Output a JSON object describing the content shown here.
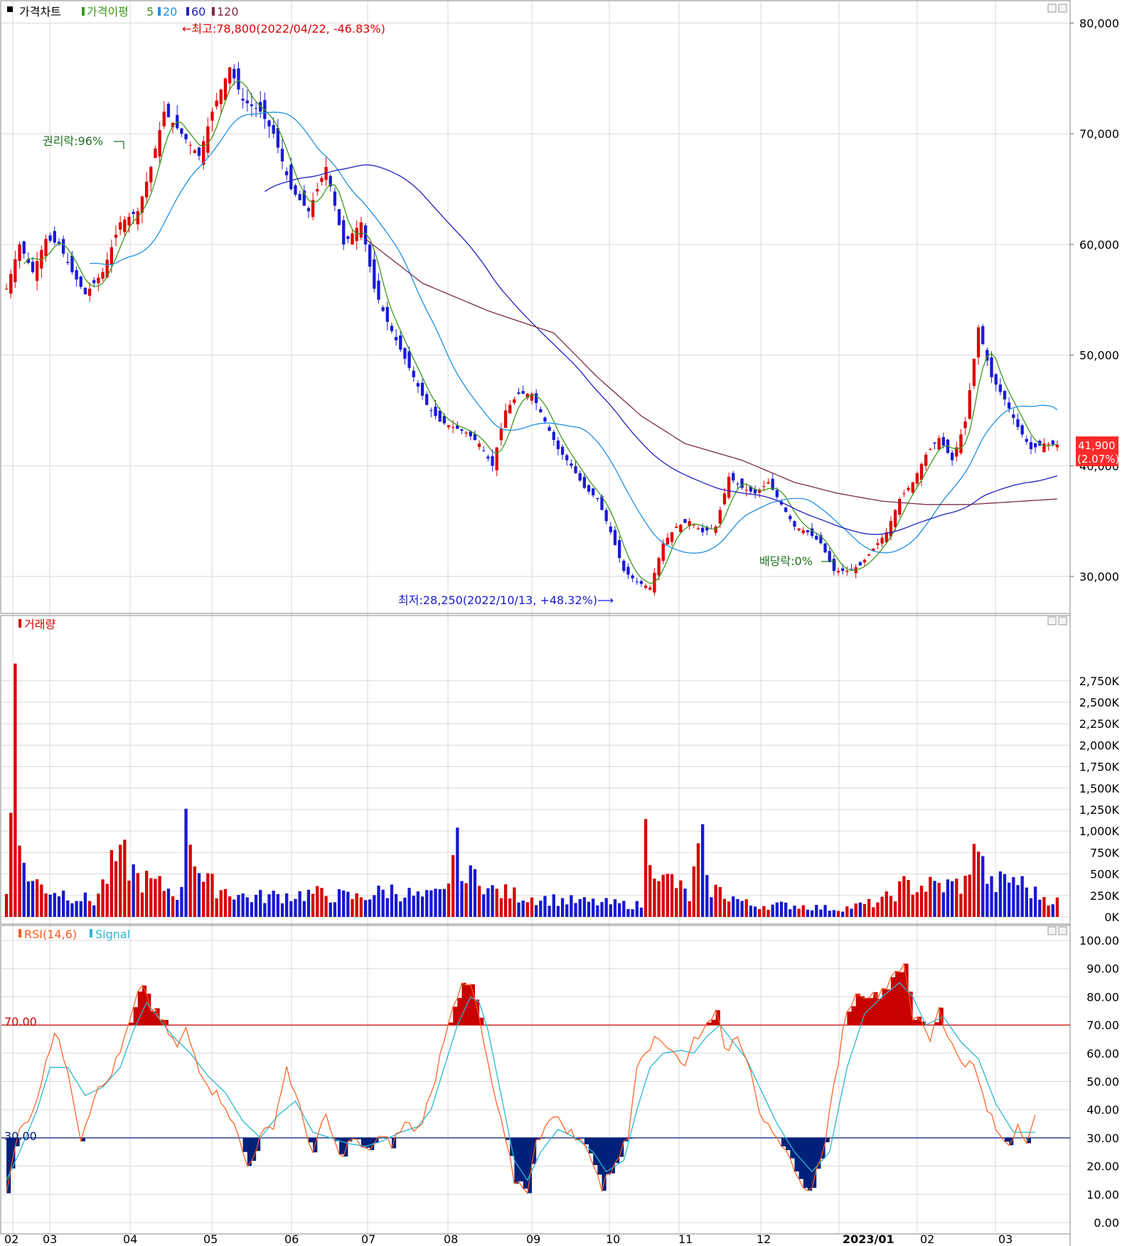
{
  "colors": {
    "up": "#e00000",
    "down": "#1a1ad6",
    "ma5": "#3a9a1a",
    "ma20": "#2090e0",
    "ma60": "#2020c0",
    "ma120": "#7a2a4a",
    "vol_up": "#d80000",
    "vol_down": "#1818d0",
    "rsi": "#ff5a1a",
    "signal": "#2ab8d0",
    "over": "#c80000",
    "under": "#00207a",
    "grid": "#d8d8d8",
    "pricebox": "#ff2a2a"
  },
  "price_panel": {
    "legend": {
      "title": "가격차트",
      "ma_label": "가격이평",
      "p5": "5",
      "p20": "20",
      "p60": "60",
      "p120": "120"
    },
    "annotations": {
      "high": "←최고:78,800(2022/04/22, -46.83%)",
      "low": "최저:28,250(2022/10/13, +48.32%)⟶",
      "rights": "권리락:96%",
      "dividend": "배당락:0%"
    },
    "last_price": "41,900",
    "last_change": "(2.07%)"
  },
  "volume_panel": {
    "legend": "거래량"
  },
  "rsi_panel": {
    "legend_rsi": "RSI(14,6)",
    "legend_signal": "Signal",
    "upper_label": "70.00",
    "lower_label": "30.00"
  },
  "chart_data": [
    {
      "type": "candlestick",
      "title": "가격차트",
      "y_ticks": [
        "30,000",
        "40,000",
        "50,000",
        "60,000",
        "70,000",
        "80,000"
      ],
      "ylim": [
        27000,
        82000
      ],
      "x_ticks": [
        "02",
        "03",
        "04",
        "05",
        "06",
        "07",
        "08",
        "09",
        "10",
        "11",
        "12",
        "2023/01",
        "02",
        "03"
      ],
      "high": {
        "value": 78800,
        "date": "2022/04/22",
        "pct": -46.83
      },
      "low": {
        "value": 28250,
        "date": "2022/10/13",
        "pct": 48.32
      },
      "last": 41900,
      "close_anchors": [
        [
          0,
          56000
        ],
        [
          3,
          60000
        ],
        [
          6,
          57500
        ],
        [
          9,
          60500
        ],
        [
          12,
          60000
        ],
        [
          15,
          57500
        ],
        [
          18,
          55500
        ],
        [
          22,
          57500
        ],
        [
          26,
          62000
        ],
        [
          30,
          63000
        ],
        [
          33,
          67000
        ],
        [
          36,
          72000
        ],
        [
          40,
          70000
        ],
        [
          44,
          68000
        ],
        [
          47,
          72000
        ],
        [
          51,
          76000
        ],
        [
          54,
          73000
        ],
        [
          58,
          72000
        ],
        [
          61,
          70000
        ],
        [
          65,
          65000
        ],
        [
          69,
          63000
        ],
        [
          73,
          67000
        ],
        [
          77,
          60000
        ],
        [
          81,
          62000
        ],
        [
          84,
          56000
        ],
        [
          87,
          53000
        ],
        [
          90,
          50500
        ],
        [
          93,
          48000
        ],
        [
          96,
          45500
        ],
        [
          99,
          44000
        ],
        [
          102,
          43500
        ],
        [
          105,
          43000
        ],
        [
          108,
          42000
        ],
        [
          111,
          40000
        ],
        [
          114,
          45000
        ],
        [
          117,
          46500
        ],
        [
          120,
          46500
        ],
        [
          123,
          44000
        ],
        [
          126,
          41500
        ],
        [
          129,
          40000
        ],
        [
          132,
          38000
        ],
        [
          135,
          37000
        ],
        [
          138,
          34000
        ],
        [
          141,
          30500
        ],
        [
          144,
          29500
        ],
        [
          147,
          29000
        ],
        [
          150,
          33000
        ],
        [
          153,
          34500
        ],
        [
          156,
          35000
        ],
        [
          159,
          34000
        ],
        [
          162,
          34500
        ],
        [
          165,
          39000
        ],
        [
          168,
          38000
        ],
        [
          171,
          37500
        ],
        [
          174,
          38500
        ],
        [
          177,
          36500
        ],
        [
          180,
          34500
        ],
        [
          183,
          34000
        ],
        [
          186,
          33000
        ],
        [
          189,
          30500
        ],
        [
          192,
          30500
        ],
        [
          195,
          31000
        ],
        [
          198,
          32500
        ],
        [
          201,
          34000
        ],
        [
          204,
          37000
        ],
        [
          207,
          38500
        ],
        [
          210,
          41000
        ],
        [
          213,
          42500
        ],
        [
          216,
          40500
        ],
        [
          219,
          44000
        ],
        [
          222,
          52500
        ],
        [
          225,
          48000
        ],
        [
          228,
          46000
        ],
        [
          231,
          43500
        ],
        [
          234,
          41500
        ],
        [
          237,
          42000
        ],
        [
          240,
          41900
        ]
      ],
      "ma120_anchors": [
        [
          82,
          60500
        ],
        [
          95,
          56500
        ],
        [
          110,
          54000
        ],
        [
          125,
          52000
        ],
        [
          135,
          48000
        ],
        [
          145,
          44500
        ],
        [
          155,
          42000
        ],
        [
          168,
          40500
        ],
        [
          180,
          38500
        ],
        [
          190,
          37500
        ],
        [
          200,
          36800
        ],
        [
          210,
          36500
        ],
        [
          220,
          36500
        ],
        [
          240,
          37000
        ]
      ],
      "volume_anchors": [
        [
          0,
          300
        ],
        [
          2,
          2950
        ],
        [
          3,
          830
        ],
        [
          6,
          450
        ],
        [
          10,
          360
        ],
        [
          20,
          200
        ],
        [
          26,
          840
        ],
        [
          30,
          500
        ],
        [
          40,
          300
        ],
        [
          41,
          1260
        ],
        [
          45,
          450
        ],
        [
          55,
          250
        ],
        [
          70,
          300
        ],
        [
          80,
          250
        ],
        [
          88,
          350
        ],
        [
          95,
          250
        ],
        [
          100,
          300
        ],
        [
          103,
          1040
        ],
        [
          105,
          450
        ],
        [
          108,
          600
        ],
        [
          110,
          350
        ],
        [
          120,
          250
        ],
        [
          130,
          200
        ],
        [
          145,
          150
        ],
        [
          146,
          1140
        ],
        [
          150,
          450
        ],
        [
          152,
          480
        ],
        [
          156,
          250
        ],
        [
          159,
          1080
        ],
        [
          160,
          400
        ],
        [
          170,
          150
        ],
        [
          180,
          150
        ],
        [
          190,
          100
        ],
        [
          200,
          200
        ],
        [
          205,
          400
        ],
        [
          215,
          400
        ],
        [
          220,
          450
        ],
        [
          221,
          850
        ],
        [
          222,
          760
        ],
        [
          225,
          400
        ],
        [
          230,
          500
        ],
        [
          235,
          300
        ],
        [
          240,
          200
        ]
      ]
    },
    {
      "type": "bar",
      "title": "거래량",
      "y_ticks": [
        "0K",
        "250K",
        "500K",
        "750K",
        "1,000K",
        "1,250K",
        "1,500K",
        "1,750K",
        "2,000K",
        "2,250K",
        "2,500K",
        "2,750K"
      ],
      "ylim": [
        0,
        3000
      ]
    },
    {
      "type": "line",
      "title": "RSI(14,6)",
      "series": [
        {
          "name": "RSI(14,6)"
        },
        {
          "name": "Signal"
        }
      ],
      "y_ticks": [
        "0.00",
        "10.00",
        "20.00",
        "30.00",
        "40.00",
        "50.00",
        "60.00",
        "70.00",
        "80.00",
        "90.00",
        "100.00"
      ],
      "ylim": [
        0,
        105
      ],
      "upper": 70,
      "lower": 30,
      "rsi_anchors": [
        [
          0,
          10
        ],
        [
          3,
          35
        ],
        [
          6,
          38
        ],
        [
          9,
          58
        ],
        [
          11,
          67
        ],
        [
          14,
          55
        ],
        [
          17,
          30
        ],
        [
          20,
          45
        ],
        [
          23,
          50
        ],
        [
          26,
          60
        ],
        [
          29,
          75
        ],
        [
          31,
          85
        ],
        [
          33,
          76
        ],
        [
          36,
          70
        ],
        [
          39,
          62
        ],
        [
          41,
          68
        ],
        [
          44,
          55
        ],
        [
          47,
          47
        ],
        [
          50,
          42
        ],
        [
          53,
          30
        ],
        [
          55,
          20
        ],
        [
          58,
          30
        ],
        [
          61,
          35
        ],
        [
          64,
          55
        ],
        [
          67,
          40
        ],
        [
          70,
          25
        ],
        [
          73,
          38
        ],
        [
          76,
          23
        ],
        [
          79,
          30
        ],
        [
          82,
          25
        ],
        [
          85,
          30
        ],
        [
          88,
          28
        ],
        [
          91,
          35
        ],
        [
          94,
          33
        ],
        [
          97,
          45
        ],
        [
          100,
          66
        ],
        [
          102,
          78
        ],
        [
          104,
          83
        ],
        [
          106,
          84
        ],
        [
          108,
          72
        ],
        [
          110,
          55
        ],
        [
          113,
          35
        ],
        [
          116,
          15
        ],
        [
          119,
          12
        ],
        [
          121,
          28
        ],
        [
          124,
          38
        ],
        [
          127,
          35
        ],
        [
          130,
          30
        ],
        [
          133,
          26
        ],
        [
          136,
          12
        ],
        [
          139,
          22
        ],
        [
          142,
          30
        ],
        [
          144,
          57
        ],
        [
          146,
          62
        ],
        [
          149,
          65
        ],
        [
          152,
          62
        ],
        [
          155,
          55
        ],
        [
          157,
          65
        ],
        [
          160,
          70
        ],
        [
          162,
          77
        ],
        [
          164,
          60
        ],
        [
          167,
          67
        ],
        [
          170,
          55
        ],
        [
          172,
          40
        ],
        [
          175,
          30
        ],
        [
          178,
          24
        ],
        [
          180,
          20
        ],
        [
          182,
          11
        ],
        [
          184,
          14
        ],
        [
          186,
          22
        ],
        [
          188,
          38
        ],
        [
          190,
          58
        ],
        [
          192,
          76
        ],
        [
          195,
          82
        ],
        [
          198,
          80
        ],
        [
          201,
          84
        ],
        [
          203,
          90
        ],
        [
          205,
          90
        ],
        [
          207,
          72
        ],
        [
          209,
          72
        ],
        [
          211,
          65
        ],
        [
          213,
          77
        ],
        [
          215,
          65
        ],
        [
          218,
          58
        ],
        [
          221,
          55
        ],
        [
          224,
          40
        ],
        [
          227,
          30
        ],
        [
          229,
          28
        ],
        [
          231,
          35
        ],
        [
          233,
          30
        ],
        [
          235,
          37
        ]
      ],
      "signal_anchors": [
        [
          0,
          15
        ],
        [
          3,
          25
        ],
        [
          7,
          40
        ],
        [
          10,
          55
        ],
        [
          14,
          55
        ],
        [
          18,
          45
        ],
        [
          22,
          48
        ],
        [
          26,
          55
        ],
        [
          29,
          68
        ],
        [
          32,
          78
        ],
        [
          35,
          72
        ],
        [
          38,
          66
        ],
        [
          42,
          60
        ],
        [
          46,
          52
        ],
        [
          50,
          46
        ],
        [
          54,
          36
        ],
        [
          58,
          30
        ],
        [
          62,
          38
        ],
        [
          66,
          43
        ],
        [
          70,
          32
        ],
        [
          74,
          30
        ],
        [
          78,
          28
        ],
        [
          82,
          27
        ],
        [
          86,
          29
        ],
        [
          90,
          32
        ],
        [
          94,
          34
        ],
        [
          97,
          40
        ],
        [
          100,
          55
        ],
        [
          103,
          70
        ],
        [
          106,
          80
        ],
        [
          108,
          78
        ],
        [
          110,
          68
        ],
        [
          113,
          45
        ],
        [
          116,
          22
        ],
        [
          119,
          15
        ],
        [
          122,
          25
        ],
        [
          126,
          33
        ],
        [
          130,
          30
        ],
        [
          134,
          25
        ],
        [
          137,
          18
        ],
        [
          141,
          22
        ],
        [
          144,
          40
        ],
        [
          147,
          55
        ],
        [
          150,
          60
        ],
        [
          154,
          61
        ],
        [
          157,
          60
        ],
        [
          160,
          66
        ],
        [
          163,
          70
        ],
        [
          166,
          64
        ],
        [
          169,
          58
        ],
        [
          172,
          48
        ],
        [
          176,
          35
        ],
        [
          180,
          25
        ],
        [
          184,
          18
        ],
        [
          188,
          25
        ],
        [
          192,
          55
        ],
        [
          196,
          74
        ],
        [
          200,
          80
        ],
        [
          204,
          85
        ],
        [
          207,
          80
        ],
        [
          210,
          70
        ],
        [
          214,
          73
        ],
        [
          218,
          64
        ],
        [
          222,
          58
        ],
        [
          226,
          42
        ],
        [
          230,
          32
        ],
        [
          233,
          32
        ],
        [
          235,
          32
        ]
      ]
    }
  ]
}
